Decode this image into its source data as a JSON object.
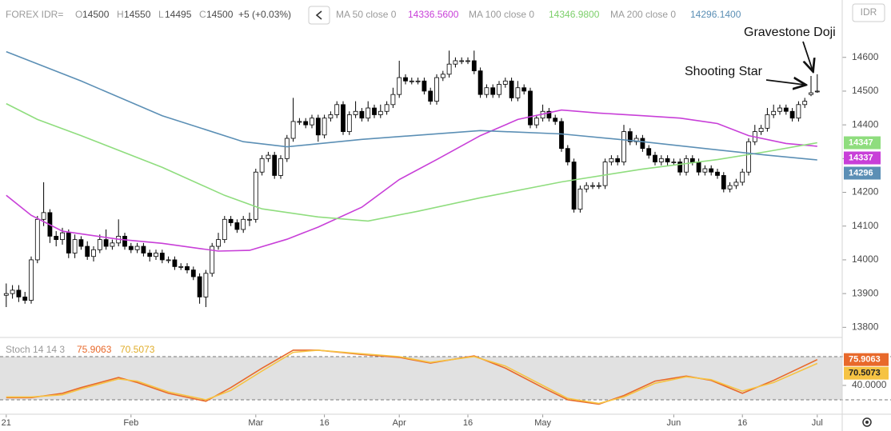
{
  "chart_data": [
    {
      "type": "candlestick",
      "title": "FOREX IDR=",
      "open_label": "O",
      "high_label": "H",
      "low_label": "L",
      "close_label": "C",
      "change_label": "+5 (+0.03%)",
      "currency": "IDR",
      "up_color": "#ffffff",
      "down_color": "#000000",
      "x": [
        0,
        1,
        2,
        3,
        4,
        5,
        6,
        7,
        8,
        9,
        10,
        11,
        12,
        13,
        14,
        15,
        16,
        17,
        18,
        19,
        20,
        21,
        22,
        23,
        24,
        25,
        26,
        27,
        28,
        29,
        30,
        31,
        32,
        33,
        34,
        35,
        36,
        37,
        38,
        39,
        40,
        41,
        42,
        43,
        44,
        45,
        46,
        47,
        48,
        49,
        50,
        51,
        52,
        53,
        54,
        55,
        56,
        57,
        58,
        59,
        60,
        61,
        62,
        63,
        64,
        65,
        66,
        67,
        68,
        69,
        70,
        71,
        72,
        73,
        74,
        75,
        76,
        77,
        78,
        79,
        80,
        81,
        82,
        83,
        84,
        85,
        86,
        87,
        88,
        89,
        90,
        91,
        92,
        93,
        94,
        95,
        96,
        97,
        98,
        99,
        100,
        101,
        102,
        103,
        104,
        105,
        106,
        107,
        108,
        109,
        110,
        111,
        112,
        113,
        114,
        115,
        116,
        117,
        118,
        119,
        120,
        121,
        122,
        123,
        124,
        125,
        126,
        127,
        128,
        129,
        130
      ],
      "open": [
        13895,
        13900,
        13910,
        13890,
        13880,
        14000,
        14120,
        14140,
        14070,
        14060,
        14080,
        14020,
        14060,
        14040,
        14010,
        14030,
        14060,
        14040,
        14050,
        14070,
        14040,
        14030,
        14040,
        14020,
        14010,
        14020,
        14000,
        14000,
        13980,
        13980,
        13970,
        13950,
        13890,
        13960,
        14040,
        14060,
        14120,
        14110,
        14090,
        14120,
        14120,
        14260,
        14300,
        14310,
        14250,
        14300,
        14360,
        14410,
        14410,
        14400,
        14420,
        14370,
        14420,
        14430,
        14460,
        14380,
        14430,
        14440,
        14420,
        14450,
        14430,
        14440,
        14460,
        14490,
        14540,
        14530,
        14530,
        14530,
        14500,
        14470,
        14540,
        14550,
        14580,
        14590,
        14590,
        14590,
        14560,
        14490,
        14510,
        14490,
        14520,
        14530,
        14480,
        14510,
        14500,
        14400,
        14420,
        14440,
        14420,
        14410,
        14330,
        14290,
        14150,
        14210,
        14220,
        14220,
        14220,
        14290,
        14300,
        14290,
        14380,
        14350,
        14360,
        14330,
        14310,
        14290,
        14300,
        14290,
        14290,
        14260,
        14300,
        14290,
        14260,
        14270,
        14260,
        14250,
        14210,
        14220,
        14230,
        14260,
        14350,
        14380,
        14390,
        14430,
        14440,
        14450,
        14440,
        14420,
        14460,
        14490,
        14500
      ],
      "high": [
        13930,
        13925,
        13925,
        13905,
        14010,
        14130,
        14230,
        14150,
        14085,
        14095,
        14090,
        14075,
        14070,
        14055,
        14040,
        14075,
        14090,
        14060,
        14120,
        14080,
        14050,
        14050,
        14050,
        14030,
        14030,
        14030,
        14010,
        14010,
        13990,
        13990,
        13980,
        13960,
        13970,
        14050,
        14080,
        14130,
        14130,
        14120,
        14130,
        14140,
        14270,
        14310,
        14320,
        14320,
        14310,
        14370,
        14480,
        14420,
        14420,
        14430,
        14430,
        14430,
        14440,
        14470,
        14470,
        14440,
        14470,
        14450,
        14470,
        14460,
        14460,
        14470,
        14510,
        14590,
        14550,
        14540,
        14540,
        14540,
        14510,
        14550,
        14560,
        14620,
        14600,
        14600,
        14600,
        14620,
        14570,
        14520,
        14520,
        14530,
        14540,
        14540,
        14530,
        14520,
        14510,
        14430,
        14460,
        14450,
        14430,
        14420,
        14340,
        14300,
        14220,
        14230,
        14230,
        14230,
        14300,
        14310,
        14310,
        14400,
        14390,
        14370,
        14370,
        14340,
        14320,
        14310,
        14310,
        14300,
        14300,
        14310,
        14310,
        14300,
        14280,
        14280,
        14270,
        14260,
        14230,
        14240,
        14270,
        14360,
        14400,
        14400,
        14450,
        14460,
        14460,
        14460,
        14450,
        14470,
        14480,
        14545,
        14550
      ],
      "low": [
        13860,
        13885,
        13875,
        13870,
        13870,
        13990,
        14100,
        14050,
        14040,
        14045,
        14005,
        14005,
        14030,
        14000,
        13995,
        14020,
        14030,
        14030,
        14040,
        14030,
        14020,
        14020,
        14010,
        13995,
        14000,
        13990,
        13990,
        13970,
        13970,
        13960,
        13940,
        13870,
        13860,
        13950,
        14030,
        14050,
        14100,
        14080,
        14080,
        14100,
        14110,
        14250,
        14290,
        14240,
        14240,
        14290,
        14350,
        14400,
        14390,
        14390,
        14350,
        14360,
        14410,
        14420,
        14370,
        14370,
        14420,
        14410,
        14410,
        14420,
        14420,
        14430,
        14450,
        14480,
        14520,
        14520,
        14520,
        14490,
        14460,
        14460,
        14530,
        14540,
        14570,
        14580,
        14580,
        14550,
        14480,
        14480,
        14480,
        14480,
        14510,
        14470,
        14470,
        14490,
        14390,
        14390,
        14410,
        14410,
        14400,
        14320,
        14280,
        14140,
        14140,
        14200,
        14210,
        14210,
        14210,
        14280,
        14280,
        14280,
        14340,
        14340,
        14320,
        14300,
        14280,
        14280,
        14280,
        14280,
        14250,
        14250,
        14280,
        14250,
        14250,
        14250,
        14240,
        14200,
        14200,
        14210,
        14220,
        14250,
        14340,
        14370,
        14380,
        14420,
        14430,
        14430,
        14410,
        14410,
        14450,
        14485,
        14495
      ],
      "close": [
        13900,
        13910,
        13890,
        13880,
        14000,
        14120,
        14140,
        14070,
        14060,
        14080,
        14020,
        14060,
        14040,
        14010,
        14030,
        14060,
        14040,
        14050,
        14070,
        14040,
        14030,
        14040,
        14020,
        14010,
        14020,
        14000,
        14000,
        13980,
        13980,
        13970,
        13950,
        13890,
        13960,
        14040,
        14060,
        14120,
        14110,
        14090,
        14120,
        14120,
        14260,
        14300,
        14310,
        14250,
        14300,
        14360,
        14410,
        14410,
        14400,
        14420,
        14370,
        14420,
        14430,
        14460,
        14380,
        14430,
        14440,
        14420,
        14450,
        14430,
        14440,
        14460,
        14490,
        14540,
        14530,
        14530,
        14530,
        14500,
        14470,
        14540,
        14550,
        14580,
        14590,
        14590,
        14590,
        14560,
        14490,
        14510,
        14490,
        14520,
        14530,
        14480,
        14510,
        14500,
        14400,
        14420,
        14440,
        14420,
        14410,
        14330,
        14290,
        14150,
        14210,
        14220,
        14220,
        14220,
        14290,
        14300,
        14290,
        14380,
        14350,
        14360,
        14330,
        14310,
        14290,
        14300,
        14290,
        14290,
        14260,
        14300,
        14290,
        14260,
        14270,
        14260,
        14250,
        14210,
        14220,
        14230,
        14260,
        14350,
        14380,
        14390,
        14430,
        14440,
        14450,
        14440,
        14420,
        14460,
        14470,
        14495,
        14500
      ],
      "xlim": [
        -1,
        134
      ],
      "ylim": [
        13770,
        14770
      ],
      "yticks": [
        13800,
        13900,
        14000,
        14100,
        14200,
        14300,
        14400,
        14500,
        14600
      ],
      "xticks": [
        {
          "value": 0,
          "label": "21"
        },
        {
          "value": 20,
          "label": "Feb"
        },
        {
          "value": 40,
          "label": "Mar"
        },
        {
          "value": 51,
          "label": "16"
        },
        {
          "value": 63,
          "label": "Apr"
        },
        {
          "value": 74,
          "label": "16"
        },
        {
          "value": 86,
          "label": "May"
        },
        {
          "value": 107,
          "label": "Jun"
        },
        {
          "value": 118,
          "label": "16"
        },
        {
          "value": 130,
          "label": "Jul"
        }
      ],
      "lines": [
        {
          "name": "MA 50 close 0",
          "color": "#c83fd8",
          "last_label": "14336.5600",
          "badge_label": "14337",
          "x": [
            0,
            4,
            9,
            18,
            25,
            34,
            39,
            45,
            50,
            57,
            63,
            69,
            76,
            82,
            89,
            95,
            102,
            108,
            114,
            119,
            125,
            130
          ],
          "values": [
            14191,
            14132,
            14085,
            14061,
            14049,
            14026,
            14028,
            14061,
            14097,
            14156,
            14238,
            14297,
            14368,
            14416,
            14444,
            14435,
            14427,
            14420,
            14404,
            14368,
            14345,
            14336.56
          ]
        },
        {
          "name": "MA 100 close 0",
          "color": "#8fdd7e",
          "last_label": "14346.9800",
          "badge_label": "14347",
          "x": [
            0,
            5,
            12,
            25,
            35,
            41,
            50,
            58,
            66,
            76,
            89,
            102,
            114,
            122,
            130
          ],
          "values": [
            14463,
            14416,
            14368,
            14274,
            14191,
            14151,
            14127,
            14115,
            14144,
            14184,
            14231,
            14269,
            14297,
            14321,
            14346.98
          ]
        },
        {
          "name": "MA 200 close 0",
          "color": "#5b8fb5",
          "last_label": "14296.1400",
          "badge_label": "14296",
          "x": [
            0,
            12,
            25,
            38,
            45,
            57,
            76,
            89,
            102,
            114,
            122,
            130
          ],
          "values": [
            14617,
            14530,
            14427,
            14350,
            14335,
            14357,
            14383,
            14373,
            14350,
            14326,
            14310,
            14296.14
          ]
        }
      ],
      "annotations": [
        "Gravestone Doji",
        "Shooting Star"
      ]
    },
    {
      "type": "line",
      "title": "Stoch 14 14 3",
      "ylim": [
        0,
        100
      ],
      "band": [
        20,
        80
      ],
      "band_color": "#e1e1e1",
      "yticks": [
        {
          "value": 40,
          "label": "40.0000"
        }
      ],
      "series": [
        {
          "color": "#e8692b",
          "x": [
            0,
            4,
            9,
            12,
            18,
            21,
            26,
            32,
            36,
            41,
            46,
            50,
            57,
            63,
            68,
            75,
            80,
            86,
            90,
            95,
            99,
            104,
            109,
            113,
            118,
            123,
            130
          ],
          "values": [
            23,
            23,
            29,
            37,
            51,
            44,
            29,
            18,
            37,
            64,
            89,
            89,
            83,
            79,
            71,
            81,
            64,
            37,
            20,
            14,
            26,
            46,
            53,
            47,
            29,
            47,
            75.9063
          ]
        },
        {
          "color": "#f6c343",
          "x": [
            0,
            4,
            9,
            12,
            18,
            21,
            26,
            32,
            36,
            41,
            46,
            50,
            57,
            63,
            68,
            75,
            80,
            86,
            90,
            95,
            99,
            104,
            109,
            113,
            118,
            123,
            130
          ],
          "values": [
            24,
            24,
            27,
            35,
            49,
            46,
            31,
            20,
            33,
            60,
            86,
            89,
            84,
            80,
            72,
            80,
            67,
            40,
            22,
            15,
            24,
            43,
            52,
            48,
            32,
            44,
            70.5073
          ]
        }
      ]
    }
  ]
}
